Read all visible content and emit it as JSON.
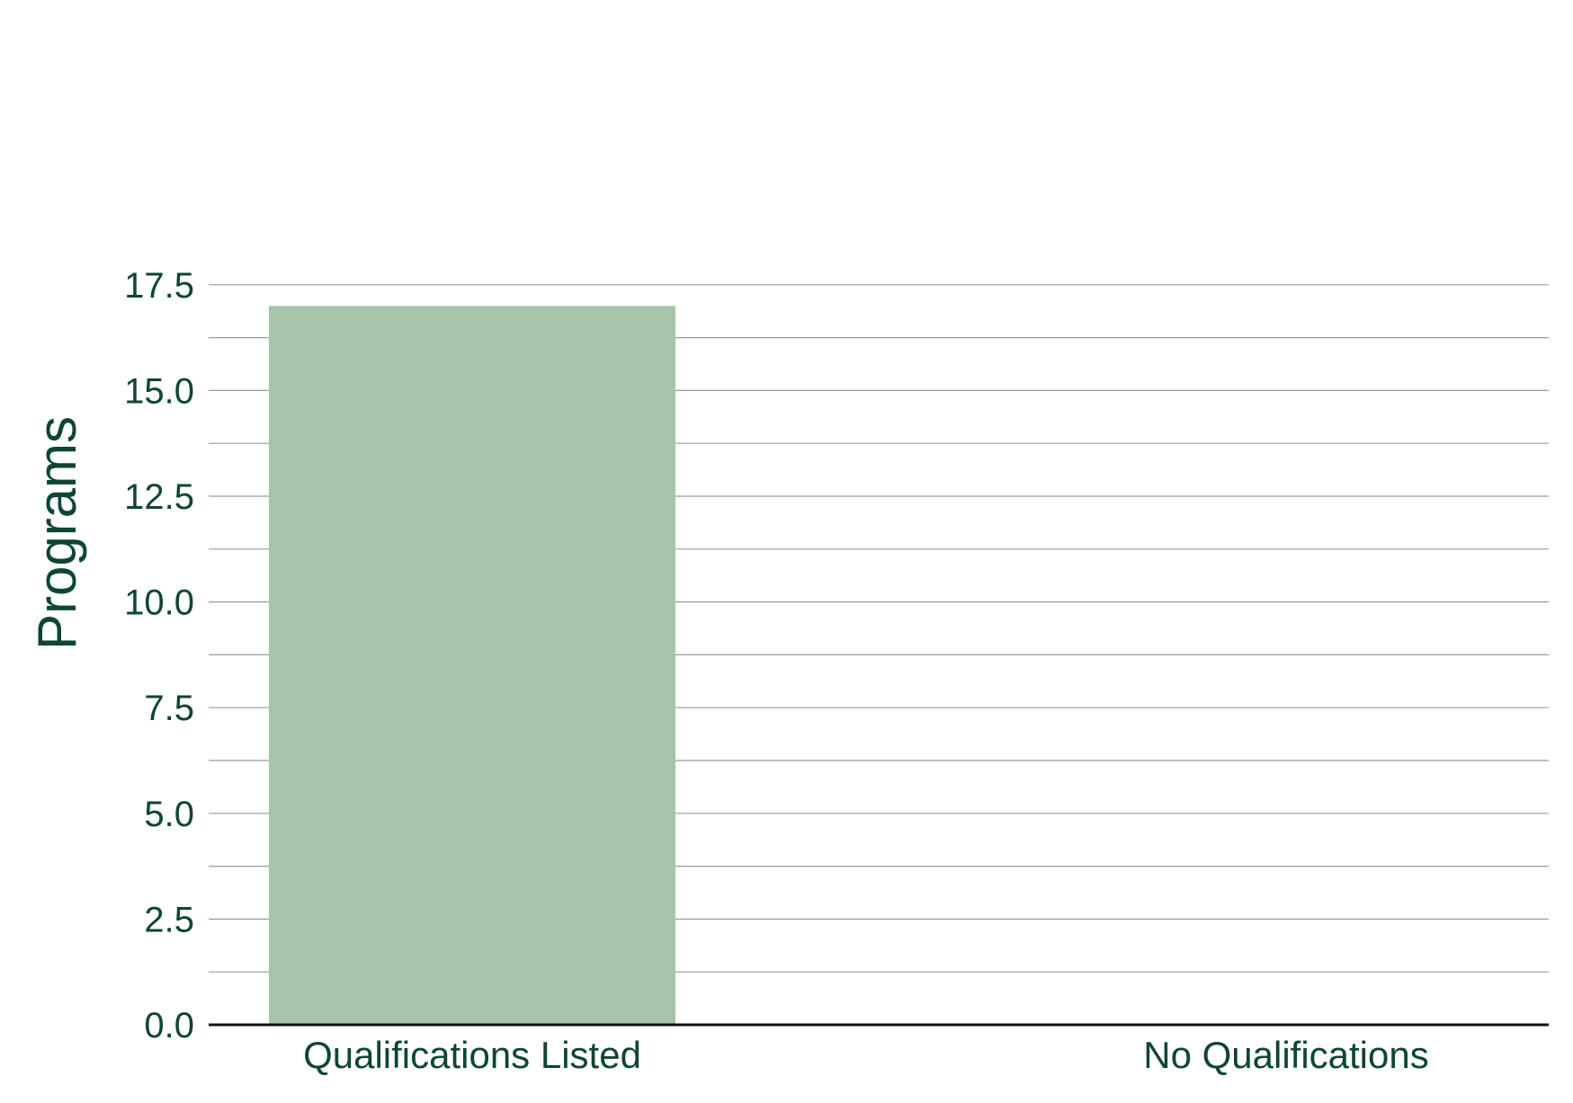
{
  "chart_data": {
    "type": "bar",
    "categories": [
      "Qualifications Listed",
      "No Qualifications"
    ],
    "values": [
      17,
      0
    ],
    "title": "",
    "xlabel": "",
    "ylabel": "Programs",
    "ylim": [
      0,
      18.5
    ],
    "yticks": [
      "0.0",
      "2.5",
      "5.0",
      "7.5",
      "10.0",
      "12.5",
      "15.0",
      "17.5"
    ],
    "grid": true,
    "legend": "none"
  },
  "colors": {
    "bar": "#a5c4a9",
    "text": "#0e4536",
    "grid": "#9a9a9a",
    "baseline": "#111111"
  }
}
